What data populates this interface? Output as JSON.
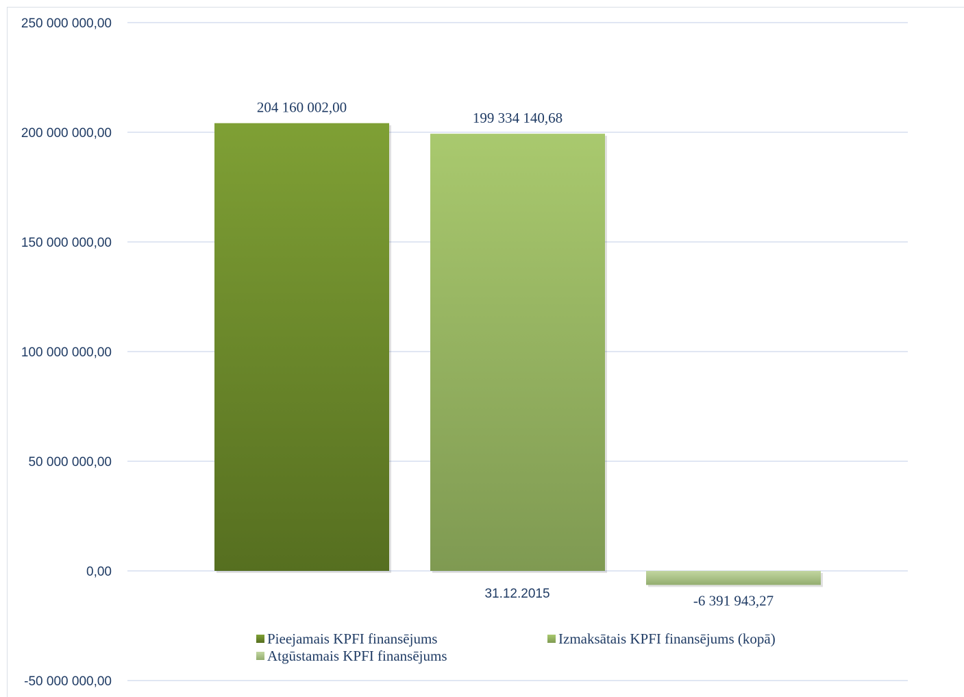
{
  "chart_data": {
    "type": "bar",
    "categories": [
      "31.12.2015"
    ],
    "series": [
      {
        "name": "Pieejamais KPFI finansējums",
        "values": [
          204160002.0
        ],
        "label": "204 160 002,00",
        "color": "#6b8e2d"
      },
      {
        "name": "Izmaksātais KPFI finansējums (kopā)",
        "values": [
          199334140.68
        ],
        "label": "199 334 140,68",
        "color": "#a3c26d"
      },
      {
        "name": "Atgūstamais KPFI finansējums",
        "values": [
          -6391943.27
        ],
        "label": "-6 391 943,27",
        "color": "#b3ca8f"
      }
    ],
    "ylim": [
      -50000000,
      250000000
    ],
    "yticks": [
      {
        "value": 250000000,
        "label": "250 000 000,00"
      },
      {
        "value": 200000000,
        "label": "200 000 000,00"
      },
      {
        "value": 150000000,
        "label": "150 000 000,00"
      },
      {
        "value": 100000000,
        "label": "100 000 000,00"
      },
      {
        "value": 50000000,
        "label": "50 000 000,00"
      },
      {
        "value": 0,
        "label": "0,00"
      },
      {
        "value": -50000000,
        "label": "-50 000 000,00"
      }
    ],
    "grid": true,
    "legend_position": "bottom"
  }
}
